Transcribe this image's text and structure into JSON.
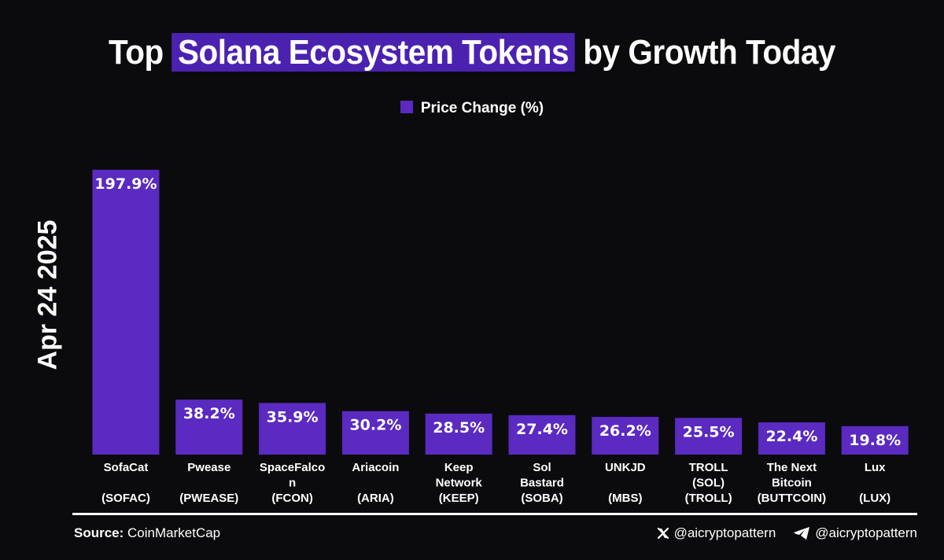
{
  "title": {
    "before": "Top",
    "highlight": "Solana Ecosystem Tokens",
    "after": "by Growth Today"
  },
  "date_label": "Apr 24 2025",
  "colors": {
    "bar": "#5a2ac1",
    "highlight": "#4b22b0",
    "background": "#0b0b0d",
    "text": "#ffffff"
  },
  "chart_data": {
    "type": "bar",
    "legend_position": "top-center",
    "grid": false,
    "ylim": [
      0,
      200
    ],
    "categories": [
      [
        "SofaCat",
        "",
        "(SOFAC)"
      ],
      [
        "Pwease",
        "",
        "(PWEASE)"
      ],
      [
        "SpaceFalco",
        "n",
        "(FCON)"
      ],
      [
        "Ariacoin",
        "",
        "(ARIA)"
      ],
      [
        "Keep",
        "Network",
        "(KEEP)"
      ],
      [
        "Sol",
        "Bastard",
        "(SOBA)"
      ],
      [
        "UNKJD",
        "",
        "(MBS)"
      ],
      [
        "TROLL",
        "(SOL)",
        "(TROLL)"
      ],
      [
        "The Next",
        "Bitcoin",
        "(BUTTCOIN)"
      ],
      [
        "Lux",
        "",
        "(LUX)"
      ]
    ],
    "series": [
      {
        "name": "Price Change (%)",
        "values": [
          197.9,
          38.2,
          35.9,
          30.2,
          28.5,
          27.4,
          26.2,
          25.5,
          22.4,
          19.8
        ],
        "labels": [
          "197.9%",
          "38.2%",
          "35.9%",
          "30.2%",
          "28.5%",
          "27.4%",
          "26.2%",
          "25.5%",
          "22.4%",
          "19.8%"
        ]
      }
    ]
  },
  "footer": {
    "source_label": "Source:",
    "source_name": "CoinMarketCap",
    "x_handle": "@aicryptopattern",
    "telegram_handle": "@aicryptopattern",
    "x_icon": "x-logo-icon",
    "telegram_icon": "telegram-icon"
  }
}
